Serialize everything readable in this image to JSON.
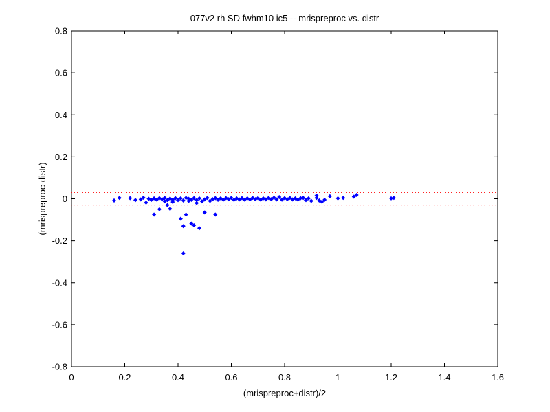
{
  "chart_data": {
    "type": "scatter",
    "title": "077v2 rh SD fwhm10 ic5 -- mrispreproc vs. distr",
    "xlabel": "(mrispreproc+distr)/2",
    "ylabel": "(mrispreproc-distr)",
    "xlim": [
      0,
      1.6
    ],
    "ylim": [
      -0.8,
      0.8
    ],
    "xticks": [
      0,
      0.2,
      0.4,
      0.6,
      0.8,
      1,
      1.2,
      1.4,
      1.6
    ],
    "xtick_labels": [
      "0",
      "0.2",
      "0.4",
      "0.6",
      "0.8",
      "1",
      "1.2",
      "1.4",
      "1.6"
    ],
    "yticks": [
      -0.8,
      -0.6,
      -0.4,
      -0.2,
      0,
      0.2,
      0.4,
      0.6,
      0.8
    ],
    "ytick_labels": [
      "-0.8",
      "-0.6",
      "-0.4",
      "-0.2",
      "0",
      "0.2",
      "0.4",
      "0.6",
      "0.8"
    ],
    "grid": false,
    "reference_lines": [
      0.03,
      -0.03
    ],
    "colors": {
      "points": "#0000ff",
      "reference_lines": "#ff0000",
      "axes": "#000000"
    },
    "series": [
      {
        "points": [
          [
            0.16,
            -0.008
          ],
          [
            0.18,
            0.004
          ],
          [
            0.22,
            0.003
          ],
          [
            0.24,
            -0.006
          ],
          [
            0.26,
            -0.003
          ],
          [
            0.27,
            0.005
          ],
          [
            0.28,
            -0.018
          ],
          [
            0.29,
            0.0
          ],
          [
            0.3,
            -0.005
          ],
          [
            0.31,
            0.002
          ],
          [
            0.31,
            -0.075
          ],
          [
            0.32,
            -0.004
          ],
          [
            0.33,
            0.003
          ],
          [
            0.33,
            -0.05
          ],
          [
            0.34,
            -0.002
          ],
          [
            0.35,
            0.004
          ],
          [
            0.35,
            -0.012
          ],
          [
            0.36,
            -0.03
          ],
          [
            0.36,
            -0.006
          ],
          [
            0.37,
            -0.048
          ],
          [
            0.37,
            0.001
          ],
          [
            0.38,
            -0.004
          ],
          [
            0.38,
            -0.015
          ],
          [
            0.39,
            0.003
          ],
          [
            0.4,
            -0.006
          ],
          [
            0.41,
            -0.095
          ],
          [
            0.41,
            0.002
          ],
          [
            0.42,
            -0.13
          ],
          [
            0.42,
            -0.26
          ],
          [
            0.42,
            -0.008
          ],
          [
            0.43,
            0.004
          ],
          [
            0.43,
            -0.075
          ],
          [
            0.44,
            -0.01
          ],
          [
            0.44,
            0.0
          ],
          [
            0.45,
            -0.005
          ],
          [
            0.45,
            -0.118
          ],
          [
            0.46,
            -0.126
          ],
          [
            0.46,
            0.003
          ],
          [
            0.47,
            -0.02
          ],
          [
            0.47,
            -0.006
          ],
          [
            0.48,
            -0.14
          ],
          [
            0.48,
            0.002
          ],
          [
            0.49,
            -0.012
          ],
          [
            0.5,
            -0.065
          ],
          [
            0.5,
            -0.003
          ],
          [
            0.51,
            0.004
          ],
          [
            0.52,
            -0.01
          ],
          [
            0.53,
            -0.002
          ],
          [
            0.54,
            -0.075
          ],
          [
            0.54,
            0.003
          ],
          [
            0.55,
            -0.005
          ],
          [
            0.56,
            0.002
          ],
          [
            0.57,
            -0.004
          ],
          [
            0.58,
            0.003
          ],
          [
            0.59,
            -0.002
          ],
          [
            0.6,
            0.004
          ],
          [
            0.61,
            -0.005
          ],
          [
            0.62,
            0.002
          ],
          [
            0.63,
            -0.003
          ],
          [
            0.64,
            0.003
          ],
          [
            0.65,
            -0.004
          ],
          [
            0.66,
            0.002
          ],
          [
            0.67,
            -0.003
          ],
          [
            0.68,
            0.004
          ],
          [
            0.69,
            -0.002
          ],
          [
            0.7,
            0.003
          ],
          [
            0.71,
            -0.004
          ],
          [
            0.72,
            0.002
          ],
          [
            0.73,
            -0.003
          ],
          [
            0.74,
            0.004
          ],
          [
            0.75,
            -0.002
          ],
          [
            0.76,
            0.005
          ],
          [
            0.77,
            -0.003
          ],
          [
            0.78,
            0.008
          ],
          [
            0.79,
            -0.004
          ],
          [
            0.8,
            0.003
          ],
          [
            0.81,
            -0.002
          ],
          [
            0.82,
            0.004
          ],
          [
            0.83,
            -0.003
          ],
          [
            0.84,
            0.002
          ],
          [
            0.85,
            -0.004
          ],
          [
            0.86,
            0.003
          ],
          [
            0.87,
            0.004
          ],
          [
            0.88,
            -0.006
          ],
          [
            0.89,
            0.002
          ],
          [
            0.9,
            -0.01
          ],
          [
            0.92,
            0.004
          ],
          [
            0.92,
            0.015
          ],
          [
            0.93,
            -0.008
          ],
          [
            0.94,
            -0.014
          ],
          [
            0.95,
            -0.005
          ],
          [
            0.97,
            0.012
          ],
          [
            1.0,
            0.002
          ],
          [
            1.02,
            0.004
          ],
          [
            1.06,
            0.01
          ],
          [
            1.07,
            0.018
          ],
          [
            1.2,
            0.002
          ],
          [
            1.21,
            0.004
          ]
        ]
      }
    ]
  }
}
